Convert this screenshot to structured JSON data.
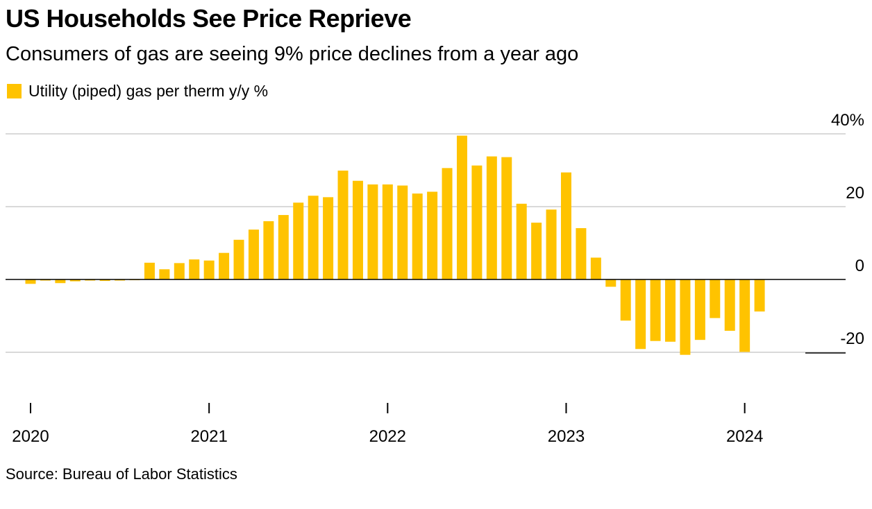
{
  "header": {
    "title": "US Households See Price Reprieve",
    "subtitle": "Consumers of gas are seeing 9% price declines from a year ago"
  },
  "footer": {
    "source": "Source: Bureau of Labor Statistics"
  },
  "colors": {
    "bar": "#FFC300",
    "grid": "#d9d9d9",
    "zero_line": "#000000"
  },
  "chart_data": {
    "type": "bar",
    "title": "US Households See Price Reprieve",
    "subtitle": "Consumers of gas are seeing 9% price declines from a year ago",
    "xlabel": "",
    "ylabel": "",
    "ylim": [
      -30,
      40
    ],
    "grid": true,
    "y_axis_position": "right",
    "legend_position": "top-left",
    "y_ticks": [
      {
        "value": 40,
        "label": "40%"
      },
      {
        "value": 20,
        "label": "20"
      },
      {
        "value": 0,
        "label": "0"
      },
      {
        "value": -20,
        "label": "-20"
      }
    ],
    "x_ticks": [
      {
        "date": "2020-01",
        "label": "2020"
      },
      {
        "date": "2021-01",
        "label": "2021"
      },
      {
        "date": "2022-01",
        "label": "2022"
      },
      {
        "date": "2023-01",
        "label": "2023"
      },
      {
        "date": "2024-01",
        "label": "2024"
      }
    ],
    "categories": [
      "2020-01",
      "2020-02",
      "2020-03",
      "2020-04",
      "2020-05",
      "2020-06",
      "2020-07",
      "2020-08",
      "2020-09",
      "2020-10",
      "2020-11",
      "2020-12",
      "2021-01",
      "2021-02",
      "2021-03",
      "2021-04",
      "2021-05",
      "2021-06",
      "2021-07",
      "2021-08",
      "2021-09",
      "2021-10",
      "2021-11",
      "2021-12",
      "2022-01",
      "2022-02",
      "2022-03",
      "2022-04",
      "2022-05",
      "2022-06",
      "2022-07",
      "2022-08",
      "2022-09",
      "2022-10",
      "2022-11",
      "2022-12",
      "2023-01",
      "2023-02",
      "2023-03",
      "2023-04",
      "2023-05",
      "2023-06",
      "2023-07",
      "2023-08",
      "2023-09",
      "2023-10",
      "2023-11",
      "2023-12",
      "2024-01",
      "2024-02"
    ],
    "series": [
      {
        "name": "Utility (piped) gas per therm y/y %",
        "values": [
          -1.2,
          -0.3,
          -1.0,
          -0.5,
          -0.3,
          -0.4,
          -0.3,
          -0.2,
          4.6,
          2.8,
          4.5,
          5.5,
          5.2,
          7.3,
          10.9,
          13.7,
          16.0,
          17.7,
          21.1,
          23.0,
          22.6,
          29.9,
          27.1,
          26.1,
          26.1,
          25.8,
          23.6,
          24.1,
          30.6,
          39.5,
          31.3,
          33.8,
          33.6,
          20.8,
          15.6,
          19.2,
          29.4,
          14.1,
          6.0,
          -2.0,
          -11.3,
          -19.1,
          -16.9,
          -17.1,
          -20.7,
          -16.6,
          -10.6,
          -14.1,
          -19.9,
          -8.8
        ]
      }
    ]
  }
}
